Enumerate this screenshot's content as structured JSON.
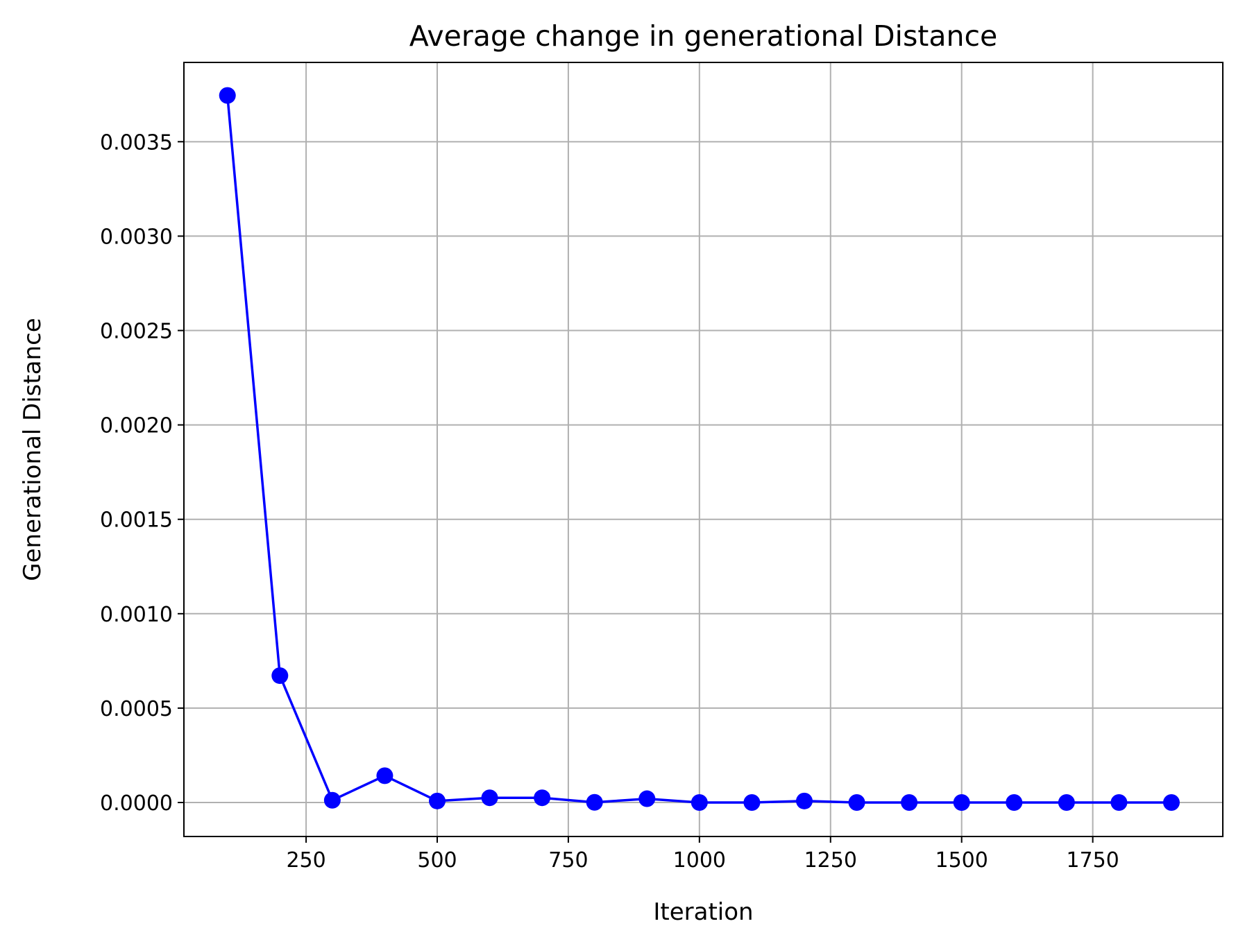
{
  "chart_data": {
    "type": "line",
    "title": "Average change in generational Distance",
    "xlabel": "Iteration",
    "ylabel": "Generational Distance",
    "xlim": [
      17,
      1998
    ],
    "ylim": [
      -0.00018,
      0.00392
    ],
    "xticks": [
      250,
      500,
      750,
      1000,
      1250,
      1500,
      1750
    ],
    "xtick_labels": [
      "250",
      "500",
      "750",
      "1000",
      "1250",
      "1500",
      "1750"
    ],
    "yticks": [
      0.0,
      0.0005,
      0.001,
      0.0015,
      0.002,
      0.0025,
      0.003,
      0.0035
    ],
    "ytick_labels": [
      "0.0000",
      "0.0005",
      "0.0010",
      "0.0015",
      "0.0020",
      "0.0025",
      "0.0030",
      "0.0035"
    ],
    "grid": true,
    "legend": null,
    "series": [
      {
        "color": "#0000ff",
        "marker": "circle",
        "x": [
          100,
          200,
          300,
          400,
          500,
          600,
          700,
          800,
          900,
          1000,
          1100,
          1200,
          1300,
          1400,
          1500,
          1600,
          1700,
          1800,
          1900
        ],
        "y": [
          0.003745,
          0.000672,
          1.2e-05,
          0.000142,
          8e-06,
          2.5e-05,
          2.5e-05,
          1e-06,
          2e-05,
          0.0,
          0.0,
          8e-06,
          0.0,
          0.0,
          0.0,
          0.0,
          0.0,
          0.0,
          0.0
        ]
      }
    ]
  }
}
